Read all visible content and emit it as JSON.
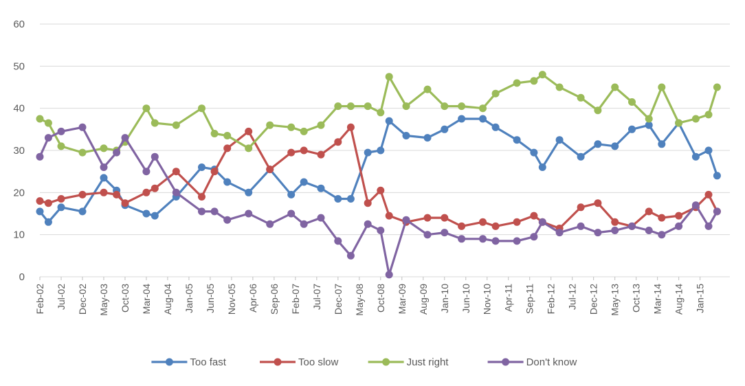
{
  "chart_data": {
    "type": "line",
    "title": "",
    "xlabel": "",
    "ylabel": "",
    "ylim": [
      0,
      60
    ],
    "y_ticks": [
      0,
      10,
      20,
      30,
      40,
      50,
      60
    ],
    "grid": "horizontal",
    "legend_position": "bottom",
    "x_tick_labels": [
      "Feb-02",
      "Jul-02",
      "Dec-02",
      "May-03",
      "Oct-03",
      "Mar-04",
      "Aug-04",
      "Jan-05",
      "Jun-05",
      "Nov-05",
      "Apr-06",
      "Sep-06",
      "Feb-07",
      "Jul-07",
      "Dec-07",
      "May-08",
      "Oct-08",
      "Mar-09",
      "Aug-09",
      "Jan-10",
      "Jun-10",
      "Nov-10",
      "Apr-11",
      "Sep-11",
      "Feb-12",
      "Jul-12",
      "Dec-12",
      "May-13",
      "Oct-13",
      "Mar-14",
      "Aug-14",
      "Jan-15"
    ],
    "series": [
      {
        "name": "Too fast",
        "color": "#4F81BD",
        "points": [
          [
            "2002-02",
            15.5
          ],
          [
            "2002-04",
            13
          ],
          [
            "2002-07",
            16.5
          ],
          [
            "2002-12",
            15.5
          ],
          [
            "2003-05",
            23.5
          ],
          [
            "2003-08",
            20.5
          ],
          [
            "2003-10",
            17
          ],
          [
            "2004-03",
            15
          ],
          [
            "2004-05",
            14.5
          ],
          [
            "2004-10",
            19
          ],
          [
            "2005-04",
            26
          ],
          [
            "2005-07",
            25.5
          ],
          [
            "2005-10",
            22.5
          ],
          [
            "2006-03",
            20
          ],
          [
            "2006-08",
            25.5
          ],
          [
            "2007-01",
            19.5
          ],
          [
            "2007-04",
            22.5
          ],
          [
            "2007-08",
            21
          ],
          [
            "2007-12",
            18.5
          ],
          [
            "2008-03",
            18.5
          ],
          [
            "2008-07",
            29.5
          ],
          [
            "2008-10",
            30
          ],
          [
            "2008-12",
            37
          ],
          [
            "2009-04",
            33.5
          ],
          [
            "2009-09",
            33
          ],
          [
            "2010-01",
            35
          ],
          [
            "2010-05",
            37.5
          ],
          [
            "2010-10",
            37.5
          ],
          [
            "2011-01",
            35.5
          ],
          [
            "2011-06",
            32.5
          ],
          [
            "2011-10",
            29.5
          ],
          [
            "2011-12",
            26
          ],
          [
            "2012-04",
            32.5
          ],
          [
            "2012-09",
            28.5
          ],
          [
            "2013-01",
            31.5
          ],
          [
            "2013-05",
            31
          ],
          [
            "2013-09",
            35
          ],
          [
            "2014-01",
            36
          ],
          [
            "2014-04",
            31.5
          ],
          [
            "2014-08",
            36.5
          ],
          [
            "2014-12",
            28.5
          ],
          [
            "2015-03",
            30
          ],
          [
            "2015-05",
            24
          ]
        ]
      },
      {
        "name": "Too slow",
        "color": "#C0504D",
        "points": [
          [
            "2002-02",
            18
          ],
          [
            "2002-04",
            17.5
          ],
          [
            "2002-07",
            18.5
          ],
          [
            "2002-12",
            19.5
          ],
          [
            "2003-05",
            20
          ],
          [
            "2003-08",
            19.5
          ],
          [
            "2003-10",
            17.5
          ],
          [
            "2004-03",
            20
          ],
          [
            "2004-05",
            21
          ],
          [
            "2004-10",
            25
          ],
          [
            "2005-04",
            19
          ],
          [
            "2005-07",
            25
          ],
          [
            "2005-10",
            30.5
          ],
          [
            "2006-03",
            34.5
          ],
          [
            "2006-08",
            25.5
          ],
          [
            "2007-01",
            29.5
          ],
          [
            "2007-04",
            30
          ],
          [
            "2007-08",
            29
          ],
          [
            "2007-12",
            32
          ],
          [
            "2008-03",
            35.5
          ],
          [
            "2008-07",
            17.5
          ],
          [
            "2008-10",
            20.5
          ],
          [
            "2008-12",
            14.5
          ],
          [
            "2009-04",
            13
          ],
          [
            "2009-09",
            14
          ],
          [
            "2010-01",
            14
          ],
          [
            "2010-05",
            12
          ],
          [
            "2010-10",
            13
          ],
          [
            "2011-01",
            12
          ],
          [
            "2011-06",
            13
          ],
          [
            "2011-10",
            14.5
          ],
          [
            "2011-12",
            13
          ],
          [
            "2012-04",
            11.5
          ],
          [
            "2012-09",
            16.5
          ],
          [
            "2013-01",
            17.5
          ],
          [
            "2013-05",
            13
          ],
          [
            "2013-09",
            12
          ],
          [
            "2014-01",
            15.5
          ],
          [
            "2014-04",
            14
          ],
          [
            "2014-08",
            14.5
          ],
          [
            "2014-12",
            16.5
          ],
          [
            "2015-03",
            19.5
          ],
          [
            "2015-05",
            15.5
          ]
        ]
      },
      {
        "name": "Just right",
        "color": "#9BBB59",
        "points": [
          [
            "2002-02",
            37.5
          ],
          [
            "2002-04",
            36.5
          ],
          [
            "2002-07",
            31
          ],
          [
            "2002-12",
            29.5
          ],
          [
            "2003-05",
            30.5
          ],
          [
            "2003-08",
            30
          ],
          [
            "2003-10",
            32
          ],
          [
            "2004-03",
            40
          ],
          [
            "2004-05",
            36.5
          ],
          [
            "2004-10",
            36
          ],
          [
            "2005-04",
            40
          ],
          [
            "2005-07",
            34
          ],
          [
            "2005-10",
            33.5
          ],
          [
            "2006-03",
            30.5
          ],
          [
            "2006-08",
            36
          ],
          [
            "2007-01",
            35.5
          ],
          [
            "2007-04",
            34.5
          ],
          [
            "2007-08",
            36
          ],
          [
            "2007-12",
            40.5
          ],
          [
            "2008-03",
            40.5
          ],
          [
            "2008-07",
            40.5
          ],
          [
            "2008-10",
            39
          ],
          [
            "2008-12",
            47.5
          ],
          [
            "2009-04",
            40.5
          ],
          [
            "2009-09",
            44.5
          ],
          [
            "2010-01",
            40.5
          ],
          [
            "2010-05",
            40.5
          ],
          [
            "2010-10",
            40
          ],
          [
            "2011-01",
            43.5
          ],
          [
            "2011-06",
            46
          ],
          [
            "2011-10",
            46.5
          ],
          [
            "2011-12",
            48
          ],
          [
            "2012-04",
            45
          ],
          [
            "2012-09",
            42.5
          ],
          [
            "2013-01",
            39.5
          ],
          [
            "2013-05",
            45
          ],
          [
            "2013-09",
            41.5
          ],
          [
            "2014-01",
            37.5
          ],
          [
            "2014-04",
            45
          ],
          [
            "2014-08",
            36.5
          ],
          [
            "2014-12",
            37.5
          ],
          [
            "2015-03",
            38.5
          ],
          [
            "2015-05",
            45
          ]
        ]
      },
      {
        "name": "Don't know",
        "color": "#8064A2",
        "points": [
          [
            "2002-02",
            28.5
          ],
          [
            "2002-04",
            33
          ],
          [
            "2002-07",
            34.5
          ],
          [
            "2002-12",
            35.5
          ],
          [
            "2003-05",
            26
          ],
          [
            "2003-08",
            29.5
          ],
          [
            "2003-10",
            33
          ],
          [
            "2004-03",
            25
          ],
          [
            "2004-05",
            28.5
          ],
          [
            "2004-10",
            20
          ],
          [
            "2005-04",
            15.5
          ],
          [
            "2005-07",
            15.5
          ],
          [
            "2005-10",
            13.5
          ],
          [
            "2006-03",
            15
          ],
          [
            "2006-08",
            12.5
          ],
          [
            "2007-01",
            15
          ],
          [
            "2007-04",
            12.5
          ],
          [
            "2007-08",
            14
          ],
          [
            "2007-12",
            8.5
          ],
          [
            "2008-03",
            5
          ],
          [
            "2008-07",
            12.5
          ],
          [
            "2008-10",
            11
          ],
          [
            "2008-12",
            0.5
          ],
          [
            "2009-04",
            13.5
          ],
          [
            "2009-09",
            10
          ],
          [
            "2010-01",
            10.5
          ],
          [
            "2010-05",
            9
          ],
          [
            "2010-10",
            9
          ],
          [
            "2011-01",
            8.5
          ],
          [
            "2011-06",
            8.5
          ],
          [
            "2011-10",
            9.5
          ],
          [
            "2011-12",
            13
          ],
          [
            "2012-04",
            10.5
          ],
          [
            "2012-09",
            12
          ],
          [
            "2013-01",
            10.5
          ],
          [
            "2013-05",
            11
          ],
          [
            "2013-09",
            12
          ],
          [
            "2014-01",
            11
          ],
          [
            "2014-04",
            10
          ],
          [
            "2014-08",
            12
          ],
          [
            "2014-12",
            17
          ],
          [
            "2015-03",
            12
          ],
          [
            "2015-05",
            15.5
          ]
        ]
      }
    ]
  }
}
